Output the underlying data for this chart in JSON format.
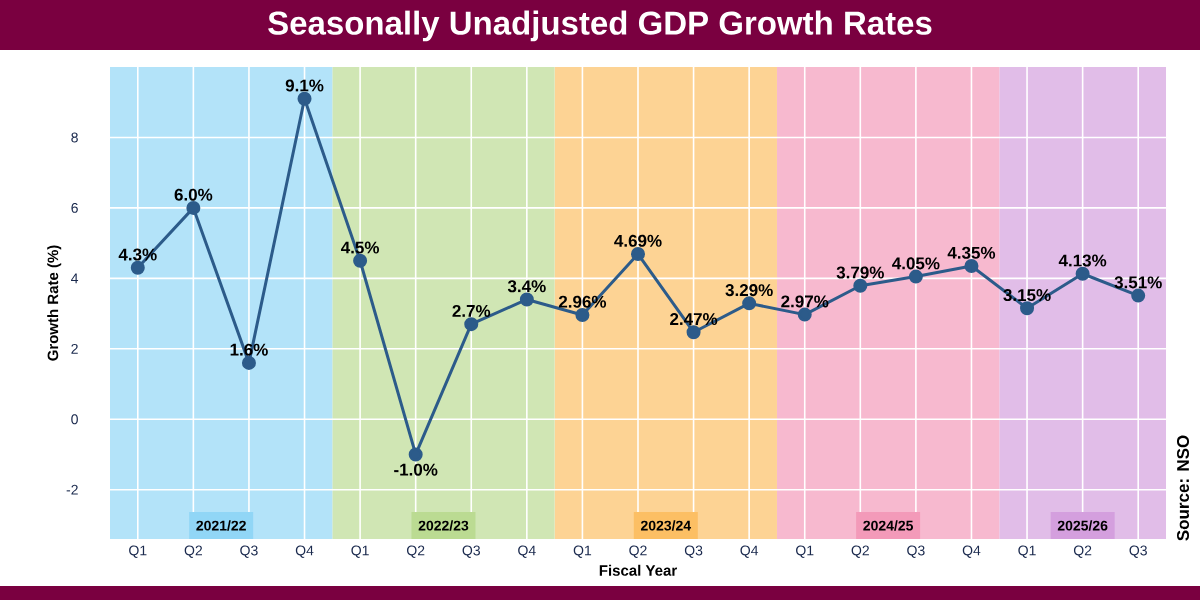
{
  "chart_data": {
    "type": "line",
    "title": "Seasonally Unadjusted GDP Growth Rates",
    "xlabel": "Fiscal Year",
    "ylabel": "Growth Rate (%)",
    "categories": [
      "Q1",
      "Q2",
      "Q3",
      "Q4",
      "Q1",
      "Q2",
      "Q3",
      "Q4",
      "Q1",
      "Q2",
      "Q3",
      "Q4",
      "Q1",
      "Q2",
      "Q3",
      "Q4",
      "Q1",
      "Q2",
      "Q3"
    ],
    "values": [
      4.3,
      6.0,
      1.6,
      9.1,
      4.5,
      -1.0,
      2.7,
      3.4,
      2.96,
      4.69,
      2.47,
      3.29,
      2.97,
      3.79,
      4.05,
      4.35,
      3.15,
      4.13,
      3.51
    ],
    "value_labels": [
      "4.3%",
      "6.0%",
      "1.6%",
      "9.1%",
      "4.5%",
      "-1.0%",
      "2.7%",
      "3.4%",
      "2.96%",
      "4.69%",
      "2.47%",
      "3.29%",
      "2.97%",
      "3.79%",
      "4.05%",
      "4.35%",
      "3.15%",
      "4.13%",
      "3.51%"
    ],
    "color": "#2c5b8a",
    "marker": "circle",
    "line_style": "solid",
    "ylim": [
      -3.4,
      10
    ],
    "yticks": [
      -2,
      0,
      2,
      4,
      6,
      8
    ],
    "grid": true,
    "annotations": [
      "2021/22",
      "2022/23",
      "2023/24",
      "2024/25",
      "2025/26",
      "Source: NSO"
    ]
  }
}
